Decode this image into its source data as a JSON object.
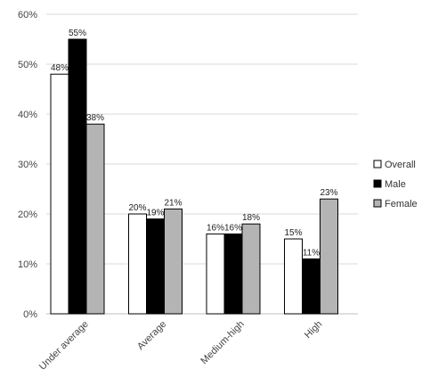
{
  "chart_data": {
    "type": "bar",
    "title": "",
    "xlabel": "",
    "ylabel": "",
    "categories": [
      "Under average",
      "Average",
      "Medium-high",
      "High"
    ],
    "series": [
      {
        "name": "Overall",
        "values": [
          48,
          20,
          16,
          15
        ],
        "labels": [
          "48%",
          "20%",
          "16%",
          "15%"
        ],
        "color": "#ffffff"
      },
      {
        "name": "Male",
        "values": [
          55,
          19,
          16,
          11
        ],
        "labels": [
          "55%",
          "19%",
          "16%",
          "11%"
        ],
        "color": "#000000"
      },
      {
        "name": "Female",
        "values": [
          38,
          21,
          18,
          23
        ],
        "labels": [
          "38%",
          "21%",
          "18%",
          "23%"
        ],
        "color": "#b4b4b4"
      }
    ],
    "ylim": [
      0,
      60
    ],
    "yticks": [
      0,
      10,
      20,
      30,
      40,
      50,
      60
    ],
    "ytick_labels": [
      "0%",
      "10%",
      "20%",
      "30%",
      "40%",
      "50%",
      "60%"
    ],
    "grid": true,
    "grid_color": "#d9d9d9",
    "bar_edge_color": "#000000",
    "legend_position": "right"
  }
}
